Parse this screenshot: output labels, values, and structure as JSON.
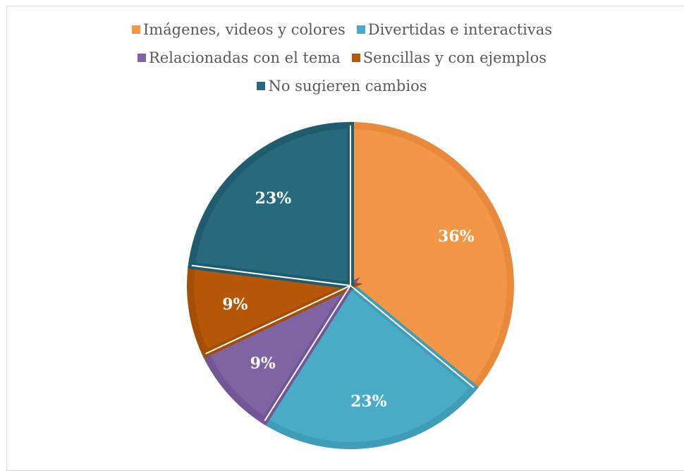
{
  "chart_data": {
    "type": "pie",
    "slices": [
      {
        "label": "Imágenes, videos y colores",
        "value": 36,
        "display": "36%",
        "color": "#f39646",
        "edge": "#e8893b"
      },
      {
        "label": "Divertidas e interactivas",
        "value": 23,
        "display": "23%",
        "color": "#49abc6",
        "edge": "#3f9db7"
      },
      {
        "label": "Relacionadas con el tema",
        "value": 9,
        "display": "9%",
        "color": "#8063a3",
        "edge": "#725696"
      },
      {
        "label": "Sencillas y con ejemplos",
        "value": 9,
        "display": "9%",
        "color": "#b65708",
        "edge": "#a54e06"
      },
      {
        "label": "No sugieren cambios",
        "value": 23,
        "display": "23%",
        "color": "#276a7c",
        "edge": "#1f5d6e"
      }
    ],
    "legend_position": "top"
  }
}
